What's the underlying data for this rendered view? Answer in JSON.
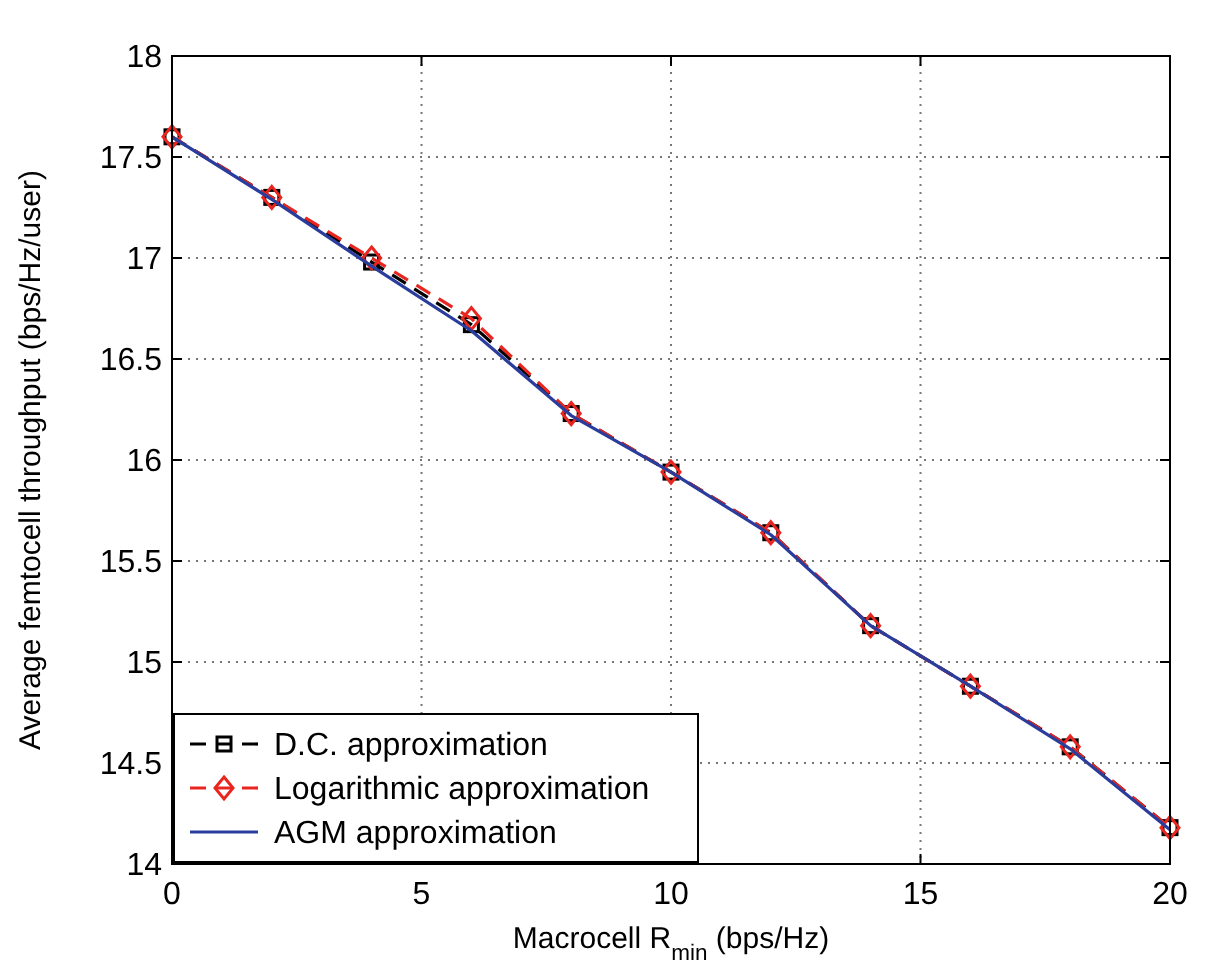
{
  "chart_data": {
    "type": "line",
    "xlabel": "Macrocell R$_{min}$ (bps/Hz)",
    "ylabel": "Average femtocell throughput (bps/Hz/user)",
    "x": [
      0,
      2,
      4,
      6,
      8,
      10,
      12,
      14,
      16,
      18,
      20
    ],
    "series": [
      {
        "name": "D.C. approximation",
        "color": "#000000",
        "marker": "square",
        "line_style": "dashed",
        "values": [
          17.6,
          17.3,
          16.98,
          16.67,
          16.23,
          15.94,
          15.64,
          15.18,
          14.88,
          14.58,
          14.18
        ]
      },
      {
        "name": "Logarithmic approximation",
        "color": "#e8261f",
        "marker": "diamond",
        "line_style": "dashed",
        "values": [
          17.6,
          17.3,
          17.0,
          16.7,
          16.23,
          15.94,
          15.64,
          15.18,
          14.88,
          14.58,
          14.18
        ]
      },
      {
        "name": "AGM approximation",
        "color": "#2a3d9c",
        "marker": "none",
        "line_style": "solid",
        "values": [
          17.6,
          17.29,
          16.96,
          16.64,
          16.22,
          15.94,
          15.63,
          15.18,
          14.88,
          14.57,
          14.17
        ]
      }
    ],
    "xlim": [
      0,
      20
    ],
    "xticks": [
      0,
      5,
      10,
      15,
      20
    ],
    "ylim": [
      14,
      18
    ],
    "yticks": [
      14,
      14.5,
      15,
      15.5,
      16,
      16.5,
      17,
      17.5,
      18
    ],
    "grid": true,
    "legend": "bottom left"
  }
}
